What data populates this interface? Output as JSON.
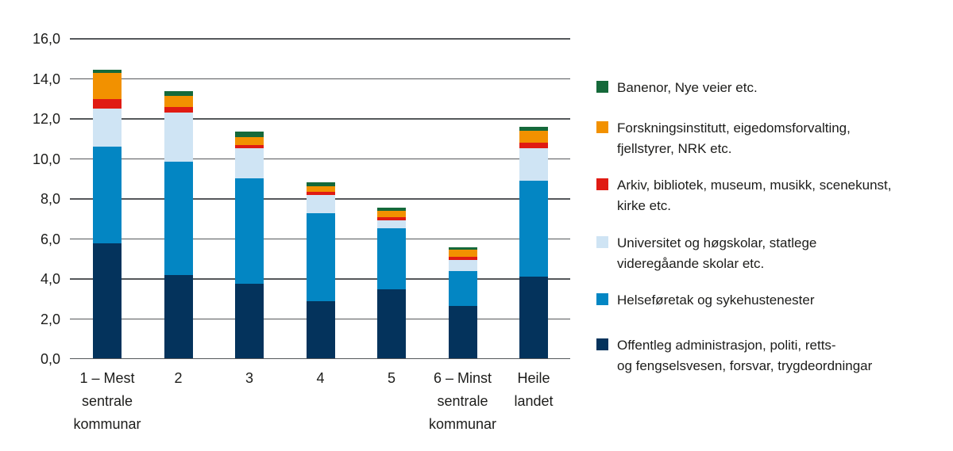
{
  "figure": {
    "background": "#ffffff",
    "text_color": "#1d1d1b",
    "gridline_color": "#55585b"
  },
  "chart_data": {
    "type": "bar",
    "stacked": true,
    "title": "",
    "xlabel": "",
    "ylabel": "",
    "grid": true,
    "legend_position": "right",
    "ylim": [
      0,
      16
    ],
    "ytick_labels": [
      "0,0",
      "2,0",
      "4,0",
      "6,0",
      "8,0",
      "10,0",
      "12,0",
      "14,0",
      "16,0"
    ],
    "ytick_values": [
      0,
      2,
      4,
      6,
      8,
      10,
      12,
      14,
      16
    ],
    "categories": [
      "1 – Mest\nsentrale\nkommunar",
      "2",
      "3",
      "4",
      "5",
      "6 – Minst\nsentrale\nkommunar",
      "Heile\nlandet"
    ],
    "series": [
      {
        "name": "Offentleg administrasjon, politi, retts- og fengselsvesen, forsvar, trygdeordningar",
        "color": "#04335c",
        "values": [
          5.8,
          4.2,
          3.75,
          2.9,
          3.5,
          2.65,
          4.1
        ]
      },
      {
        "name": "Helseføretak og sykehustenester",
        "color": "#0386c3",
        "values": [
          4.8,
          5.65,
          5.3,
          4.4,
          3.05,
          1.75,
          4.8
        ]
      },
      {
        "name": "Universitet og høgskolar, statlege videregåande skolar etc.",
        "color": "#cfe4f4",
        "values": [
          1.9,
          2.45,
          1.5,
          0.9,
          0.4,
          0.55,
          1.65
        ]
      },
      {
        "name": "Arkiv, bibliotek, museum, musikk, scenekunst, kirke etc.",
        "color": "#e01b13",
        "values": [
          0.5,
          0.3,
          0.15,
          0.15,
          0.15,
          0.15,
          0.25
        ]
      },
      {
        "name": "Forskningsinstitutt, eigedomsforvalting, fjellstyrer, NRK etc.",
        "color": "#f29100",
        "values": [
          1.3,
          0.55,
          0.4,
          0.3,
          0.3,
          0.35,
          0.6
        ]
      },
      {
        "name": "Banenor, Nye veier etc.",
        "color": "#15693a",
        "values": [
          0.15,
          0.25,
          0.25,
          0.2,
          0.15,
          0.15,
          0.2
        ]
      }
    ],
    "totals": [
      14.45,
      13.4,
      11.35,
      8.85,
      7.55,
      5.6,
      11.6
    ]
  },
  "legend": {
    "items": [
      {
        "label": "Banenor, Nye veier etc.",
        "color": "#15693a"
      },
      {
        "label": "Forskningsinstitutt, eigedomsforvalting,\nfjellstyrer, NRK etc.",
        "color": "#f29100"
      },
      {
        "label": "Arkiv, bibliotek, museum, musikk, scenekunst,\nkirke etc.",
        "color": "#e01b13"
      },
      {
        "label": "Universitet og høgskolar, statlege\nvideregåande skolar etc.",
        "color": "#cfe4f4"
      },
      {
        "label": "Helseføretak og sykehustenester",
        "color": "#0386c3"
      },
      {
        "label": "Offentleg administrasjon, politi, retts-\nog fengselsvesen, forsvar, trygdeordningar",
        "color": "#04335c"
      }
    ]
  }
}
